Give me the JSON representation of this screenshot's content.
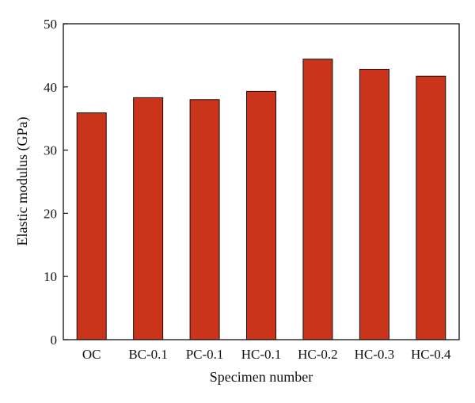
{
  "chart_data": {
    "type": "bar",
    "title": "",
    "xlabel": "Specimen number",
    "ylabel": "Elastic modulus (GPa)",
    "categories": [
      "OC",
      "BC-0.1",
      "PC-0.1",
      "HC-0.1",
      "HC-0.2",
      "HC-0.3",
      "HC-0.4"
    ],
    "values": [
      35.9,
      38.3,
      38.0,
      39.3,
      44.4,
      42.8,
      41.7
    ],
    "ylim": [
      0,
      50
    ],
    "yticks": [
      "0",
      "10",
      "20",
      "30",
      "40",
      "50"
    ],
    "bar_color": "#c9341b",
    "bar_edge_color": "#111111",
    "grid": false,
    "legend": "none"
  }
}
